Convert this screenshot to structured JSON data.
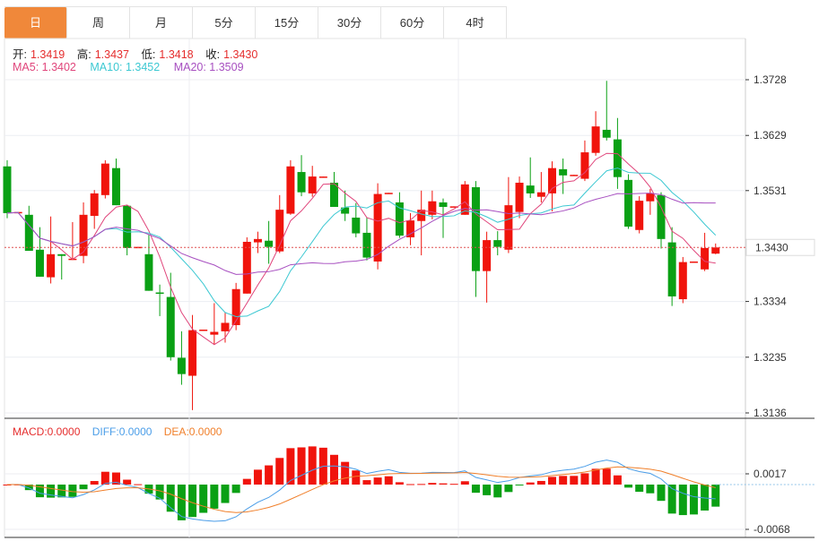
{
  "tabs": [
    {
      "label": "日",
      "active": true
    },
    {
      "label": "周"
    },
    {
      "label": "月"
    },
    {
      "label": "5分"
    },
    {
      "label": "15分"
    },
    {
      "label": "30分"
    },
    {
      "label": "60分"
    },
    {
      "label": "4时"
    }
  ],
  "ohlc_legend": {
    "open_label": "开:",
    "open": "1.3419",
    "high_label": "高:",
    "high": "1.3437",
    "low_label": "低:",
    "low": "1.3418",
    "close_label": "收:",
    "close": "1.3430"
  },
  "ma_legend": {
    "ma5": "MA5: 1.3402",
    "ma10": "MA10: 1.3452",
    "ma20": "MA20: 1.3509"
  },
  "macd_legend": {
    "macd": "MACD:0.0000",
    "diff": "DIFF:0.0000",
    "dea": "DEA:0.0000"
  },
  "colors": {
    "up": "#f0140c",
    "down": "#0aa014",
    "ma5": "#e0457b",
    "ma10": "#3cc8d2",
    "ma20": "#a74fc0",
    "diff": "#4a9de8",
    "dea": "#f07f2a",
    "tab_active": "#f0883a"
  },
  "chart_data": [
    {
      "type": "candlestick",
      "last_price": "1.3430",
      "y_ticks": [
        "1.3728",
        "1.3629",
        "1.3531",
        "1.3334",
        "1.3235",
        "1.3136"
      ],
      "ylim": [
        1.3136,
        1.3728
      ],
      "grid": true,
      "ohlc": [
        [
          1.3574,
          1.3585,
          1.3482,
          1.3491
        ],
        [
          1.3493,
          1.3493,
          1.3493,
          1.3493
        ],
        [
          1.3488,
          1.3504,
          1.3424,
          1.3424
        ],
        [
          1.3426,
          1.3466,
          1.3378,
          1.3378
        ],
        [
          1.3377,
          1.3485,
          1.3366,
          1.3418
        ],
        [
          1.3418,
          1.3418,
          1.3373,
          1.3415
        ],
        [
          1.3408,
          1.3475,
          1.3408,
          1.341
        ],
        [
          1.3415,
          1.351,
          1.3402,
          1.3488
        ],
        [
          1.3486,
          1.3532,
          1.3463,
          1.3526
        ],
        [
          1.3523,
          1.3585,
          1.3517,
          1.3579
        ],
        [
          1.3571,
          1.3588,
          1.3505,
          1.3505
        ],
        [
          1.3504,
          1.3505,
          1.3416,
          1.3429
        ],
        [
          1.343,
          1.3431,
          1.343,
          1.3431
        ],
        [
          1.3418,
          1.3453,
          1.3353,
          1.3353
        ],
        [
          1.335,
          1.3364,
          1.3308,
          1.3348
        ],
        [
          1.3342,
          1.3385,
          1.3229,
          1.3235
        ],
        [
          1.3234,
          1.3281,
          1.3186,
          1.3205
        ],
        [
          1.3202,
          1.331,
          1.3141,
          1.3283
        ],
        [
          1.3283,
          1.3284,
          1.3283,
          1.3284
        ],
        [
          1.3275,
          1.3331,
          1.3257,
          1.328
        ],
        [
          1.3281,
          1.3315,
          1.3261,
          1.3296
        ],
        [
          1.3292,
          1.3367,
          1.3283,
          1.3356
        ],
        [
          1.3348,
          1.3448,
          1.3348,
          1.344
        ],
        [
          1.3439,
          1.3458,
          1.342,
          1.3445
        ],
        [
          1.3442,
          1.3477,
          1.3401,
          1.3431
        ],
        [
          1.3423,
          1.3523,
          1.342,
          1.3497
        ],
        [
          1.349,
          1.3585,
          1.3488,
          1.3574
        ],
        [
          1.3564,
          1.3594,
          1.3521,
          1.3528
        ],
        [
          1.3526,
          1.3575,
          1.352,
          1.3556
        ],
        [
          1.3555,
          1.3556,
          1.3555,
          1.3556
        ],
        [
          1.3545,
          1.3564,
          1.3502,
          1.3502
        ],
        [
          1.3501,
          1.3531,
          1.3477,
          1.349
        ],
        [
          1.3483,
          1.3509,
          1.3448,
          1.3455
        ],
        [
          1.3456,
          1.3483,
          1.3407,
          1.3412
        ],
        [
          1.3405,
          1.3544,
          1.3391,
          1.3525
        ],
        [
          1.3526,
          1.3527,
          1.3526,
          1.3527
        ],
        [
          1.351,
          1.3528,
          1.3447,
          1.3451
        ],
        [
          1.3448,
          1.3491,
          1.3434,
          1.3478
        ],
        [
          1.3477,
          1.3531,
          1.3416,
          1.3497
        ],
        [
          1.3488,
          1.3531,
          1.348,
          1.3512
        ],
        [
          1.351,
          1.3517,
          1.3447,
          1.3502
        ],
        [
          1.3502,
          1.3503,
          1.3502,
          1.3503
        ],
        [
          1.3488,
          1.3548,
          1.3488,
          1.3542
        ],
        [
          1.3537,
          1.3548,
          1.3342,
          1.3388
        ],
        [
          1.3388,
          1.3458,
          1.3332,
          1.3443
        ],
        [
          1.3443,
          1.3459,
          1.3416,
          1.3431
        ],
        [
          1.3426,
          1.3555,
          1.342,
          1.3505
        ],
        [
          1.3493,
          1.3556,
          1.3482,
          1.3545
        ],
        [
          1.354,
          1.359,
          1.3518,
          1.3526
        ],
        [
          1.352,
          1.3564,
          1.351,
          1.3528
        ],
        [
          1.3526,
          1.3583,
          1.3494,
          1.3571
        ],
        [
          1.3569,
          1.3588,
          1.3525,
          1.3558
        ],
        [
          1.3558,
          1.3559,
          1.3558,
          1.3559
        ],
        [
          1.3552,
          1.362,
          1.3548,
          1.3599
        ],
        [
          1.3598,
          1.3672,
          1.3593,
          1.3645
        ],
        [
          1.3639,
          1.3726,
          1.362,
          1.3625
        ],
        [
          1.3622,
          1.366,
          1.3534,
          1.3555
        ],
        [
          1.355,
          1.356,
          1.3463,
          1.3467
        ],
        [
          1.3461,
          1.3521,
          1.3455,
          1.3513
        ],
        [
          1.3512,
          1.3534,
          1.3488,
          1.3526
        ],
        [
          1.3523,
          1.3528,
          1.3428,
          1.3445
        ],
        [
          1.3439,
          1.3466,
          1.3326,
          1.3343
        ],
        [
          1.3338,
          1.3413,
          1.3331,
          1.3404
        ],
        [
          1.3404,
          1.3405,
          1.3404,
          1.3405
        ],
        [
          1.3391,
          1.3456,
          1.3388,
          1.3429
        ],
        [
          1.3419,
          1.3437,
          1.3418,
          1.343
        ]
      ],
      "ma_periods": [
        5,
        10,
        20
      ]
    },
    {
      "type": "macd",
      "y_ticks": [
        "0.0017",
        "-0.0068"
      ],
      "ylim": [
        -0.0068,
        0.0017
      ]
    }
  ]
}
